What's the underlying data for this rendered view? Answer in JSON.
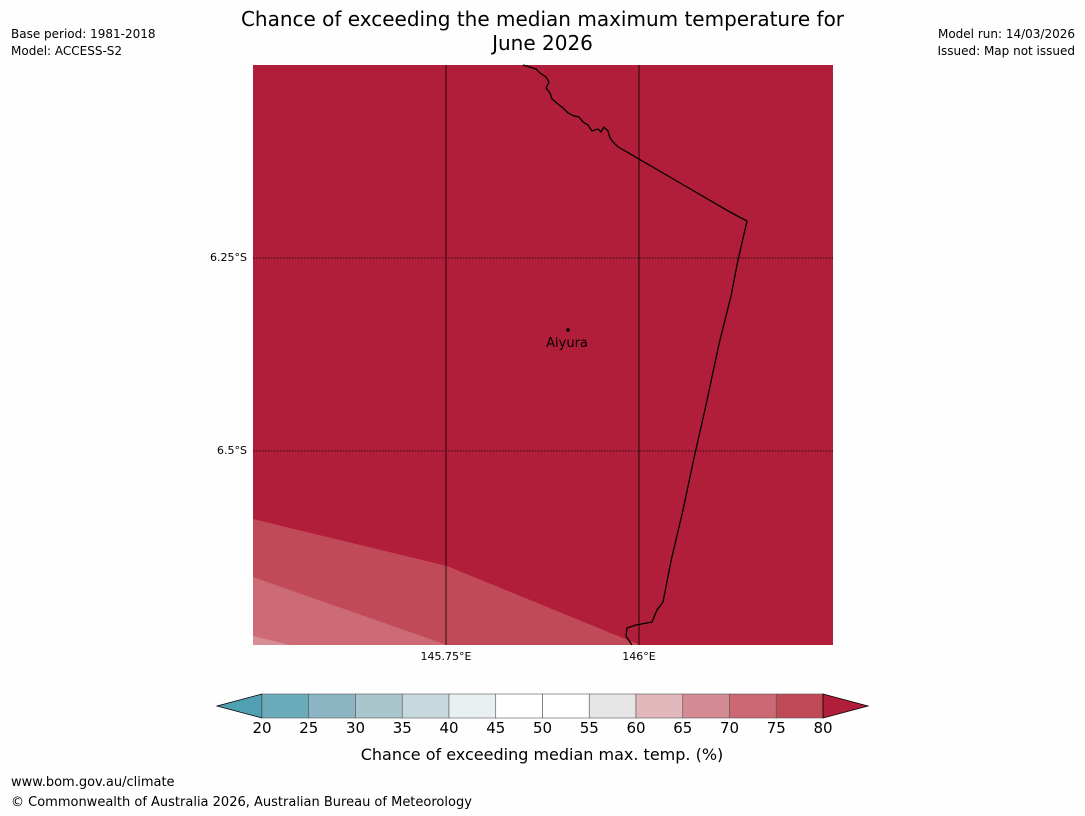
{
  "title": {
    "line1": "Chance of exceeding the median maximum temperature for",
    "line2": "June 2026"
  },
  "meta": {
    "base_period": "Base period: 1981-2018",
    "model": "Model: ACCESS-S2",
    "model_run": "Model run: 14/03/2026",
    "issued": "Issued: Map not issued"
  },
  "map": {
    "latitudes": [
      {
        "value": -6.25,
        "label": "6.25°S"
      },
      {
        "value": -6.5,
        "label": "6.5°S"
      }
    ],
    "longitudes": [
      {
        "value": 145.75,
        "label": "145.75°E"
      },
      {
        "value": 146.0,
        "label": "146°E"
      }
    ],
    "place": {
      "name": "Aiyura"
    },
    "colors": {
      "c75_80": "#b11e3a",
      "c70_75": "#c04a57",
      "c65_70": "#cc6b75",
      "c60_65": "#d88c95",
      "border": "#000000",
      "gridline": "#000000"
    }
  },
  "legend": {
    "title": "Chance of exceeding median max. temp. (%)",
    "ticks": [
      "20",
      "25",
      "30",
      "35",
      "40",
      "45",
      "50",
      "55",
      "60",
      "65",
      "70",
      "75",
      "80"
    ],
    "colors": [
      "#6aaab9",
      "#8bb5c3",
      "#a9c6cc",
      "#c7d9dc",
      "#e9f0f1",
      "#ffffff",
      "#ffffff",
      "#e6e6e6",
      "#e2b8bd",
      "#d48b94",
      "#cc6873",
      "#c04956"
    ],
    "under_color": "#4fa0b1",
    "over_color": "#b11e3a"
  },
  "footer": {
    "url": "www.bom.gov.au/climate",
    "copyright": "© Commonwealth of Australia 2026, Australian Bureau of Meteorology"
  }
}
